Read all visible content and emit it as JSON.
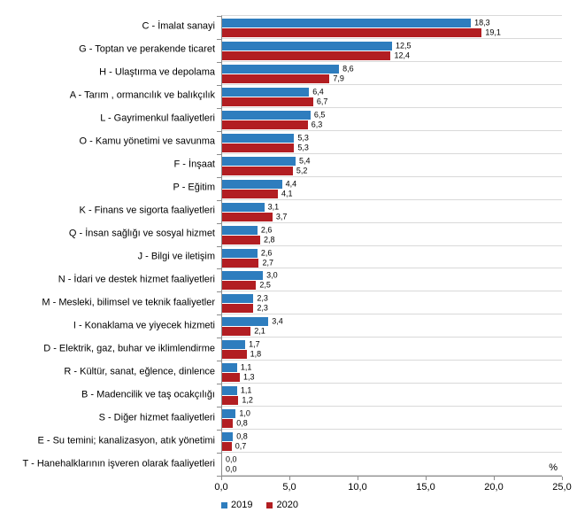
{
  "chart_data": {
    "type": "bar",
    "orientation": "horizontal",
    "title": "",
    "xlabel": "",
    "ylabel": "",
    "unit_label": "%",
    "xlim": [
      0,
      25
    ],
    "x_ticks": [
      "0,0",
      "5,0",
      "10,0",
      "15,0",
      "20,0",
      "25,0"
    ],
    "grid": "horizontal-category-separators",
    "legend_position": "bottom-left",
    "decimal_separator": ",",
    "categories": [
      "C - İmalat sanayi",
      "G - Toptan ve perakende ticaret",
      "H - Ulaştırma ve depolama",
      "A - Tarım , ormancılık ve balıkçılık",
      "L - Gayrimenkul faaliyetleri",
      "O - Kamu yönetimi ve savunma",
      "F - İnşaat",
      "P - Eğitim",
      "K - Finans ve sigorta faaliyetleri",
      "Q - İnsan sağlığı ve sosyal hizmet",
      "J - Bilgi ve iletişim",
      "N - İdari ve destek hizmet faaliyetleri",
      "M - Mesleki, bilimsel ve teknik faaliyetler",
      "I - Konaklama ve yiyecek hizmeti",
      "D - Elektrik, gaz, buhar ve iklimlendirme",
      "R - Kültür, sanat, eğlence, dinlence",
      "B - Madencilik ve taş ocakçılığı",
      "S - Diğer hizmet faaliyetleri",
      "E - Su temini; kanalizasyon, atık yönetimi",
      "T - Hanehalklarının işveren olarak faaliyetleri"
    ],
    "series": [
      {
        "name": "2019",
        "color": "#2e7dbe",
        "values": [
          18.3,
          12.5,
          8.6,
          6.4,
          6.5,
          5.3,
          5.4,
          4.4,
          3.1,
          2.6,
          2.6,
          3.0,
          2.3,
          3.4,
          1.7,
          1.1,
          1.1,
          1.0,
          0.8,
          0.0
        ]
      },
      {
        "name": "2020",
        "color": "#b21e22",
        "values": [
          19.1,
          12.4,
          7.9,
          6.7,
          6.3,
          5.3,
          5.2,
          4.1,
          3.7,
          2.8,
          2.7,
          2.5,
          2.3,
          2.1,
          1.8,
          1.3,
          1.2,
          0.8,
          0.7,
          0.0
        ]
      }
    ]
  }
}
